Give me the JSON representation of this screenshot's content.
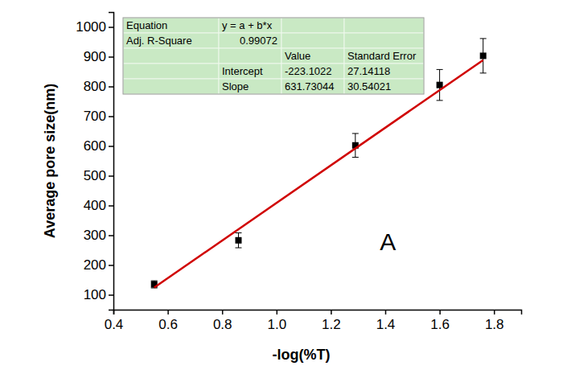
{
  "chart_data": {
    "type": "scatter",
    "x_label": "-log(%T)",
    "y_label": "Average pore size(nm)",
    "xlim": [
      0.4,
      1.9
    ],
    "xticks": [
      0.4,
      0.6,
      0.8,
      {
        "value": 1,
        "label": "1.0"
      },
      1.2,
      1.4,
      1.6,
      1.8
    ],
    "ylim": [
      50,
      1050
    ],
    "yticks": [
      100,
      200,
      300,
      400,
      500,
      600,
      700,
      800,
      900,
      1000
    ],
    "grid": false,
    "series": [
      {
        "type": "scatter",
        "color": "#000000",
        "marker": "square",
        "x": [
          0.55,
          0.86,
          1.29,
          1.6,
          1.76
        ],
        "values": [
          135,
          283,
          602,
          805,
          903
        ],
        "errors": [
          12,
          25,
          40,
          52,
          58
        ]
      },
      {
        "type": "line",
        "color": "#d00000",
        "line_style": "solid",
        "x": [
          0.55,
          1.76
        ],
        "values": [
          124.35,
          888.74
        ]
      }
    ],
    "annotations": [
      {
        "text": "A",
        "x": 1.41,
        "y": 250
      }
    ],
    "fit_table": {
      "equation_label": "Equation",
      "equation": "y = a + b*x",
      "r2_label": "Adj. R-Square",
      "r2": "0.99072",
      "columns": [
        "Value",
        "Standard Error"
      ],
      "rows": [
        {
          "name": "Intercept",
          "value": "-223.1022",
          "error": "27.14118"
        },
        {
          "name": "Slope",
          "value": "631.73044",
          "error": "30.54021"
        }
      ]
    }
  }
}
